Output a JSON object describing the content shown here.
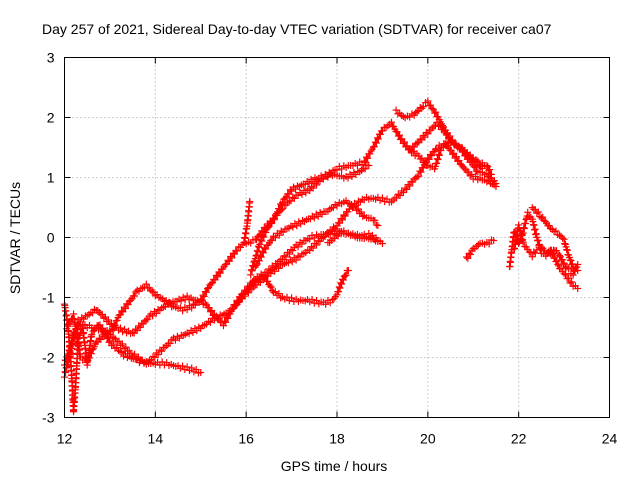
{
  "chart_data": {
    "type": "scatter",
    "title": "Day 257 of 2021, Sidereal Day-to-day VTEC variation (SDTVAR) for receiver ca07",
    "xlabel": "GPS time / hours",
    "ylabel": "SDTVAR / TECUs",
    "xlim": [
      12,
      24
    ],
    "ylim": [
      -3,
      3
    ],
    "xticks": [
      12,
      14,
      16,
      18,
      20,
      22,
      24
    ],
    "yticks": [
      -3,
      -2,
      -1,
      0,
      1,
      2,
      3
    ],
    "grid": true,
    "marker": "plus",
    "marker_color": "#ff0000",
    "tracks": [
      {
        "points": [
          [
            12.0,
            -1.1
          ],
          [
            12.08,
            -1.5
          ],
          [
            12.15,
            -2.2
          ],
          [
            12.2,
            -2.9
          ],
          [
            12.25,
            -2.4
          ],
          [
            12.3,
            -1.7
          ],
          [
            12.4,
            -1.5
          ],
          [
            12.5,
            -2.1
          ],
          [
            12.6,
            -1.6
          ],
          [
            12.75,
            -1.45
          ],
          [
            12.9,
            -1.6
          ],
          [
            13.05,
            -1.55
          ],
          [
            13.2,
            -1.3
          ],
          [
            13.4,
            -1.1
          ],
          [
            13.6,
            -0.9
          ],
          [
            13.8,
            -0.8
          ],
          [
            14.0,
            -0.95
          ],
          [
            14.2,
            -1.05
          ],
          [
            14.4,
            -1.15
          ],
          [
            14.6,
            -1.2
          ],
          [
            14.8,
            -1.15
          ],
          [
            15.0,
            -1.05
          ],
          [
            15.2,
            -0.8
          ],
          [
            15.4,
            -0.6
          ],
          [
            15.6,
            -0.4
          ],
          [
            15.8,
            -0.2
          ],
          [
            15.95,
            -0.1
          ],
          [
            16.02,
            0.2
          ],
          [
            16.08,
            0.6
          ]
        ]
      },
      {
        "points": [
          [
            12.05,
            -1.5
          ],
          [
            12.2,
            -1.3
          ],
          [
            12.35,
            -2.0
          ],
          [
            12.5,
            -2.05
          ],
          [
            12.7,
            -1.75
          ],
          [
            12.9,
            -1.6
          ],
          [
            13.0,
            -1.75
          ],
          [
            13.3,
            -1.95
          ],
          [
            13.6,
            -2.05
          ],
          [
            13.9,
            -2.1
          ],
          [
            14.2,
            -2.1
          ],
          [
            14.5,
            -2.15
          ],
          [
            14.8,
            -2.2
          ],
          [
            15.0,
            -2.25
          ]
        ]
      },
      {
        "points": [
          [
            12.0,
            -2.1
          ],
          [
            12.1,
            -1.9
          ],
          [
            12.2,
            -1.6
          ],
          [
            12.35,
            -1.45
          ],
          [
            12.6,
            -1.5
          ],
          [
            12.9,
            -1.55
          ],
          [
            13.2,
            -1.75
          ],
          [
            13.5,
            -1.95
          ],
          [
            13.8,
            -2.1
          ],
          [
            14.1,
            -1.9
          ],
          [
            14.4,
            -1.7
          ],
          [
            14.7,
            -1.6
          ],
          [
            15.0,
            -1.5
          ],
          [
            15.3,
            -1.35
          ],
          [
            15.6,
            -1.25
          ],
          [
            15.9,
            -1.0
          ],
          [
            16.2,
            -0.8
          ],
          [
            16.5,
            -0.6
          ],
          [
            16.8,
            -0.45
          ],
          [
            17.1,
            -0.35
          ],
          [
            17.4,
            -0.2
          ],
          [
            17.7,
            0.0
          ],
          [
            18.0,
            0.2
          ],
          [
            18.3,
            0.5
          ],
          [
            18.6,
            0.65
          ],
          [
            18.9,
            0.65
          ],
          [
            19.2,
            0.6
          ],
          [
            19.5,
            0.8
          ],
          [
            19.8,
            1.05
          ],
          [
            20.0,
            1.3
          ],
          [
            20.2,
            1.5
          ],
          [
            20.4,
            1.55
          ],
          [
            20.6,
            1.35
          ],
          [
            20.8,
            1.15
          ],
          [
            21.0,
            1.0
          ],
          [
            21.3,
            0.95
          ],
          [
            21.5,
            0.85
          ]
        ]
      },
      {
        "points": [
          [
            12.0,
            -2.3
          ],
          [
            12.3,
            -1.4
          ],
          [
            12.7,
            -1.2
          ],
          [
            13.1,
            -1.5
          ],
          [
            13.5,
            -1.6
          ],
          [
            13.9,
            -1.3
          ],
          [
            14.3,
            -1.1
          ],
          [
            14.7,
            -1.0
          ],
          [
            15.1,
            -1.1
          ],
          [
            15.3,
            -1.3
          ],
          [
            15.5,
            -1.45
          ],
          [
            15.7,
            -1.2
          ],
          [
            15.9,
            -0.95
          ],
          [
            16.2,
            -0.7
          ],
          [
            16.5,
            -0.55
          ],
          [
            16.8,
            -0.35
          ],
          [
            17.1,
            -0.15
          ],
          [
            17.4,
            0.0
          ],
          [
            17.7,
            0.05
          ],
          [
            18.0,
            0.1
          ],
          [
            18.3,
            0.05
          ],
          [
            18.6,
            0.0
          ],
          [
            18.9,
            -0.05
          ],
          [
            19.0,
            -0.1
          ]
        ]
      },
      {
        "points": [
          [
            16.1,
            -0.6
          ],
          [
            16.3,
            -0.1
          ],
          [
            16.5,
            0.2
          ],
          [
            16.8,
            0.5
          ],
          [
            17.1,
            0.7
          ],
          [
            17.4,
            0.8
          ],
          [
            17.7,
            1.0
          ],
          [
            18.0,
            1.15
          ],
          [
            18.3,
            1.2
          ],
          [
            18.6,
            1.25
          ],
          [
            18.8,
            1.5
          ],
          [
            19.0,
            1.8
          ],
          [
            19.2,
            1.9
          ],
          [
            19.4,
            1.65
          ],
          [
            19.6,
            1.45
          ],
          [
            19.8,
            1.35
          ],
          [
            20.0,
            1.2
          ],
          [
            20.15,
            1.15
          ],
          [
            20.3,
            1.5
          ],
          [
            20.5,
            1.6
          ],
          [
            20.7,
            1.5
          ],
          [
            20.9,
            1.3
          ],
          [
            21.1,
            1.1
          ],
          [
            21.3,
            1.05
          ],
          [
            21.5,
            0.9
          ]
        ]
      },
      {
        "points": [
          [
            15.8,
            -1.1
          ],
          [
            16.0,
            -0.9
          ],
          [
            16.2,
            -0.7
          ],
          [
            16.4,
            -0.65
          ],
          [
            16.6,
            -0.9
          ],
          [
            16.8,
            -1.0
          ],
          [
            17.1,
            -1.05
          ],
          [
            17.4,
            -1.05
          ],
          [
            17.7,
            -1.1
          ],
          [
            17.9,
            -1.05
          ],
          [
            18.0,
            -0.95
          ],
          [
            18.1,
            -0.75
          ],
          [
            18.2,
            -0.6
          ],
          [
            18.25,
            -0.55
          ]
        ]
      },
      {
        "points": [
          [
            16.0,
            -0.1
          ],
          [
            16.2,
            -0.05
          ],
          [
            16.4,
            0.15
          ],
          [
            16.6,
            0.3
          ],
          [
            16.8,
            0.6
          ],
          [
            17.0,
            0.8
          ],
          [
            17.3,
            0.9
          ],
          [
            17.6,
            1.0
          ],
          [
            17.9,
            1.05
          ],
          [
            18.2,
            1.0
          ],
          [
            18.5,
            1.1
          ],
          [
            18.7,
            1.2
          ]
        ]
      },
      {
        "points": [
          [
            16.2,
            -0.5
          ],
          [
            16.4,
            -0.2
          ],
          [
            16.6,
            0.0
          ],
          [
            16.9,
            0.15
          ],
          [
            17.2,
            0.25
          ],
          [
            17.5,
            0.35
          ],
          [
            17.8,
            0.45
          ],
          [
            18.0,
            0.55
          ],
          [
            18.2,
            0.6
          ],
          [
            18.4,
            0.5
          ],
          [
            18.6,
            0.35
          ],
          [
            18.8,
            0.3
          ],
          [
            18.9,
            0.2
          ]
        ]
      },
      {
        "points": [
          [
            17.8,
            -0.1
          ],
          [
            17.95,
            0.0
          ],
          [
            18.1,
            0.1
          ],
          [
            18.3,
            0.05
          ],
          [
            18.5,
            0.0
          ],
          [
            18.7,
            0.05
          ],
          [
            18.9,
            -0.05
          ]
        ]
      },
      {
        "points": [
          [
            19.3,
            2.1
          ],
          [
            19.5,
            2.0
          ],
          [
            19.7,
            2.05
          ],
          [
            19.9,
            2.2
          ],
          [
            20.0,
            2.25
          ],
          [
            20.15,
            2.1
          ],
          [
            20.3,
            1.9
          ],
          [
            20.5,
            1.6
          ],
          [
            20.7,
            1.5
          ],
          [
            20.9,
            1.35
          ],
          [
            21.1,
            1.25
          ],
          [
            21.3,
            1.2
          ],
          [
            21.4,
            1.05
          ]
        ]
      },
      {
        "points": [
          [
            19.6,
            1.45
          ],
          [
            19.8,
            1.6
          ],
          [
            20.0,
            1.75
          ],
          [
            20.2,
            1.9
          ],
          [
            20.4,
            1.75
          ],
          [
            20.6,
            1.55
          ],
          [
            20.8,
            1.45
          ],
          [
            21.0,
            1.3
          ],
          [
            21.2,
            1.15
          ]
        ]
      },
      {
        "points": [
          [
            20.85,
            -0.35
          ],
          [
            21.0,
            -0.2
          ],
          [
            21.15,
            -0.1
          ],
          [
            21.3,
            -0.1
          ],
          [
            21.45,
            -0.05
          ]
        ]
      },
      {
        "points": [
          [
            21.8,
            -0.5
          ],
          [
            21.85,
            -0.2
          ],
          [
            21.9,
            0.1
          ],
          [
            22.0,
            -0.1
          ],
          [
            22.1,
            0.1
          ],
          [
            22.2,
            0.4
          ],
          [
            22.3,
            0.3
          ],
          [
            22.4,
            0.0
          ],
          [
            22.5,
            -0.25
          ],
          [
            22.6,
            -0.3
          ],
          [
            22.7,
            -0.2
          ],
          [
            22.8,
            -0.35
          ],
          [
            22.9,
            -0.5
          ],
          [
            23.0,
            -0.6
          ],
          [
            23.1,
            -0.7
          ],
          [
            23.2,
            -0.8
          ],
          [
            23.3,
            -0.85
          ]
        ]
      },
      {
        "points": [
          [
            21.9,
            -0.2
          ],
          [
            22.0,
            0.2
          ],
          [
            22.1,
            -0.1
          ],
          [
            22.2,
            -0.2
          ],
          [
            22.3,
            -0.3
          ],
          [
            22.4,
            -0.2
          ],
          [
            22.5,
            -0.15
          ],
          [
            22.6,
            -0.25
          ],
          [
            22.7,
            -0.3
          ],
          [
            22.8,
            -0.2
          ],
          [
            22.9,
            -0.3
          ],
          [
            23.0,
            -0.45
          ],
          [
            23.1,
            -0.55
          ],
          [
            23.2,
            -0.6
          ],
          [
            23.3,
            -0.45
          ]
        ]
      },
      {
        "points": [
          [
            22.3,
            0.5
          ],
          [
            22.5,
            0.35
          ],
          [
            22.7,
            0.15
          ],
          [
            22.9,
            0.05
          ],
          [
            23.0,
            -0.05
          ],
          [
            23.1,
            -0.3
          ],
          [
            23.2,
            -0.5
          ],
          [
            23.3,
            -0.55
          ]
        ]
      }
    ]
  }
}
